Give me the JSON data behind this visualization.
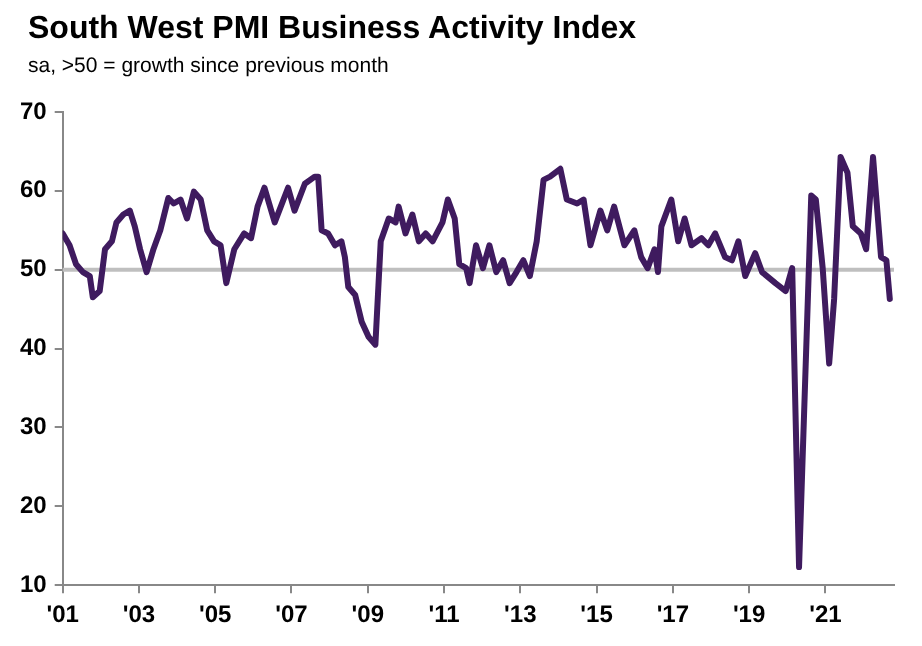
{
  "chart_data": {
    "type": "line",
    "title": "South West PMI Business Activity Index",
    "subtitle": "sa, >50 = growth since previous month",
    "x": [
      2001.0,
      2001.18,
      2001.35,
      2001.53,
      2001.71,
      2001.79,
      2001.97,
      2002.11,
      2002.29,
      2002.41,
      2002.59,
      2002.76,
      2002.89,
      2003.03,
      2003.2,
      2003.38,
      2003.56,
      2003.77,
      2003.91,
      2004.09,
      2004.26,
      2004.44,
      2004.62,
      2004.79,
      2004.97,
      2005.14,
      2005.29,
      2005.5,
      2005.76,
      2005.94,
      2006.11,
      2006.29,
      2006.56,
      2006.91,
      2007.08,
      2007.35,
      2007.61,
      2007.7,
      2007.79,
      2007.96,
      2008.14,
      2008.31,
      2008.4,
      2008.49,
      2008.67,
      2008.84,
      2009.02,
      2009.2,
      2009.34,
      2009.55,
      2009.73,
      2009.81,
      2009.99,
      2010.17,
      2010.34,
      2010.52,
      2010.7,
      2010.96,
      2011.1,
      2011.28,
      2011.4,
      2011.58,
      2011.67,
      2011.84,
      2012.02,
      2012.19,
      2012.37,
      2012.55,
      2012.72,
      2012.9,
      2013.08,
      2013.25,
      2013.43,
      2013.61,
      2013.78,
      2014.05,
      2014.22,
      2014.49,
      2014.66,
      2014.84,
      2015.1,
      2015.28,
      2015.46,
      2015.73,
      2015.99,
      2016.17,
      2016.34,
      2016.52,
      2016.61,
      2016.7,
      2016.96,
      2017.14,
      2017.31,
      2017.49,
      2017.75,
      2017.93,
      2018.11,
      2018.37,
      2018.55,
      2018.72,
      2018.9,
      2019.16,
      2019.34,
      2019.69,
      2019.96,
      2020.13,
      2020.31,
      2020.63,
      2020.75,
      2020.93,
      2021.1,
      2021.23,
      2021.4,
      2021.58,
      2021.72,
      2021.93,
      2022.07,
      2022.25,
      2022.46,
      2022.6,
      2022.69
    ],
    "series": [
      {
        "color": "#3f1b5f",
        "values": [
          54.6,
          53.1,
          50.7,
          49.7,
          49.2,
          46.5,
          47.3,
          52.6,
          53.6,
          56.0,
          57.0,
          57.5,
          55.5,
          52.6,
          49.7,
          52.6,
          55.0,
          59.1,
          58.4,
          58.9,
          56.5,
          59.9,
          58.9,
          55.0,
          53.6,
          53.1,
          48.3,
          52.6,
          54.6,
          54.0,
          58.0,
          60.4,
          56.0,
          60.4,
          57.5,
          60.9,
          61.8,
          61.8,
          55.0,
          54.6,
          53.1,
          53.6,
          51.6,
          47.8,
          46.8,
          43.4,
          41.5,
          40.5,
          53.6,
          56.5,
          56.0,
          58.0,
          54.6,
          57.0,
          53.6,
          54.6,
          53.6,
          56.0,
          58.9,
          56.5,
          50.7,
          50.2,
          48.3,
          53.1,
          50.2,
          53.1,
          49.7,
          51.2,
          48.3,
          49.7,
          51.2,
          49.2,
          53.6,
          61.4,
          61.8,
          62.8,
          58.9,
          58.4,
          58.9,
          53.1,
          57.5,
          55.0,
          58.0,
          53.1,
          55.0,
          51.6,
          50.2,
          52.6,
          49.7,
          55.5,
          58.9,
          53.6,
          56.5,
          53.1,
          54.0,
          53.1,
          54.6,
          51.6,
          51.2,
          53.6,
          49.2,
          52.1,
          49.7,
          48.3,
          47.3,
          50.2,
          12.3,
          59.4,
          58.9,
          50.2,
          38.1,
          46.3,
          64.3,
          62.3,
          55.5,
          54.6,
          52.6,
          64.3,
          51.6,
          51.2,
          46.3
        ]
      }
    ],
    "xlim": [
      2001,
      2022.8
    ],
    "xticks": [
      {
        "value": 2001,
        "label": "'01"
      },
      {
        "value": 2003,
        "label": "'03"
      },
      {
        "value": 2005,
        "label": "'05"
      },
      {
        "value": 2007,
        "label": "'07"
      },
      {
        "value": 2009,
        "label": "'09"
      },
      {
        "value": 2011,
        "label": "'11"
      },
      {
        "value": 2013,
        "label": "'13"
      },
      {
        "value": 2015,
        "label": "'15"
      },
      {
        "value": 2017,
        "label": "'17"
      },
      {
        "value": 2019,
        "label": "'19"
      },
      {
        "value": 2021,
        "label": "'21"
      }
    ],
    "ylim": [
      10,
      70
    ],
    "yticks": [
      10,
      20,
      30,
      40,
      50,
      60,
      70
    ],
    "ref_lines": [
      {
        "axis": "y",
        "value": 50,
        "color": "#bfbfbf"
      }
    ],
    "grid": false,
    "legend": false,
    "marker": "none",
    "line_style": "solid"
  }
}
